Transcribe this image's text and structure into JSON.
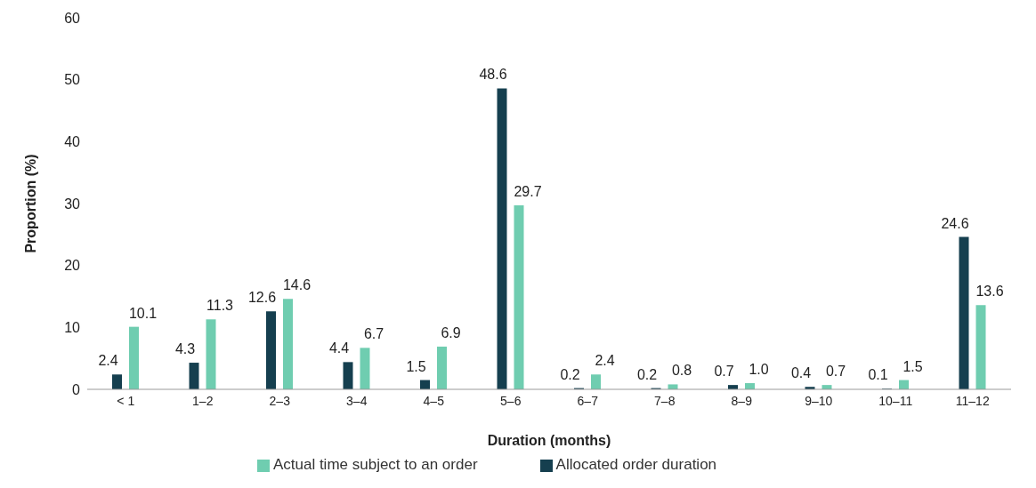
{
  "chart_data": {
    "type": "bar",
    "xlabel": "Duration (months)",
    "ylabel": "Proportion (%)",
    "categories": [
      "< 1",
      "1–2",
      "2–3",
      "3–4",
      "4–5",
      "5–6",
      "6–7",
      "7–8",
      "8–9",
      "9–10",
      "10–11",
      "11–12"
    ],
    "series": [
      {
        "name": "Allocated order duration",
        "color": "#153f4f",
        "values": [
          2.4,
          4.3,
          12.6,
          4.4,
          1.5,
          48.6,
          0.2,
          0.2,
          0.7,
          0.4,
          0.1,
          24.6
        ],
        "value_labels": [
          "2.4",
          "4.3",
          "12.6",
          "4.4",
          "1.5",
          "48.6",
          "0.2",
          "0.2",
          "0.7",
          "0.4",
          "0.1",
          "24.6"
        ]
      },
      {
        "name": "Actual time subject to an order",
        "color": "#6fcdb0",
        "values": [
          10.1,
          11.3,
          14.6,
          6.7,
          6.9,
          29.7,
          2.4,
          0.8,
          1.0,
          0.7,
          1.5,
          13.6
        ],
        "value_labels": [
          "10.1",
          "11.3",
          "14.6",
          "6.7",
          "6.9",
          "29.7",
          "2.4",
          "0.8",
          "1.0",
          "0.7",
          "1.5",
          "13.6"
        ]
      }
    ],
    "ylim": [
      0,
      60
    ],
    "yticks": [
      0,
      10,
      20,
      30,
      40,
      50,
      60
    ],
    "grid": false,
    "legend": "bottom"
  }
}
